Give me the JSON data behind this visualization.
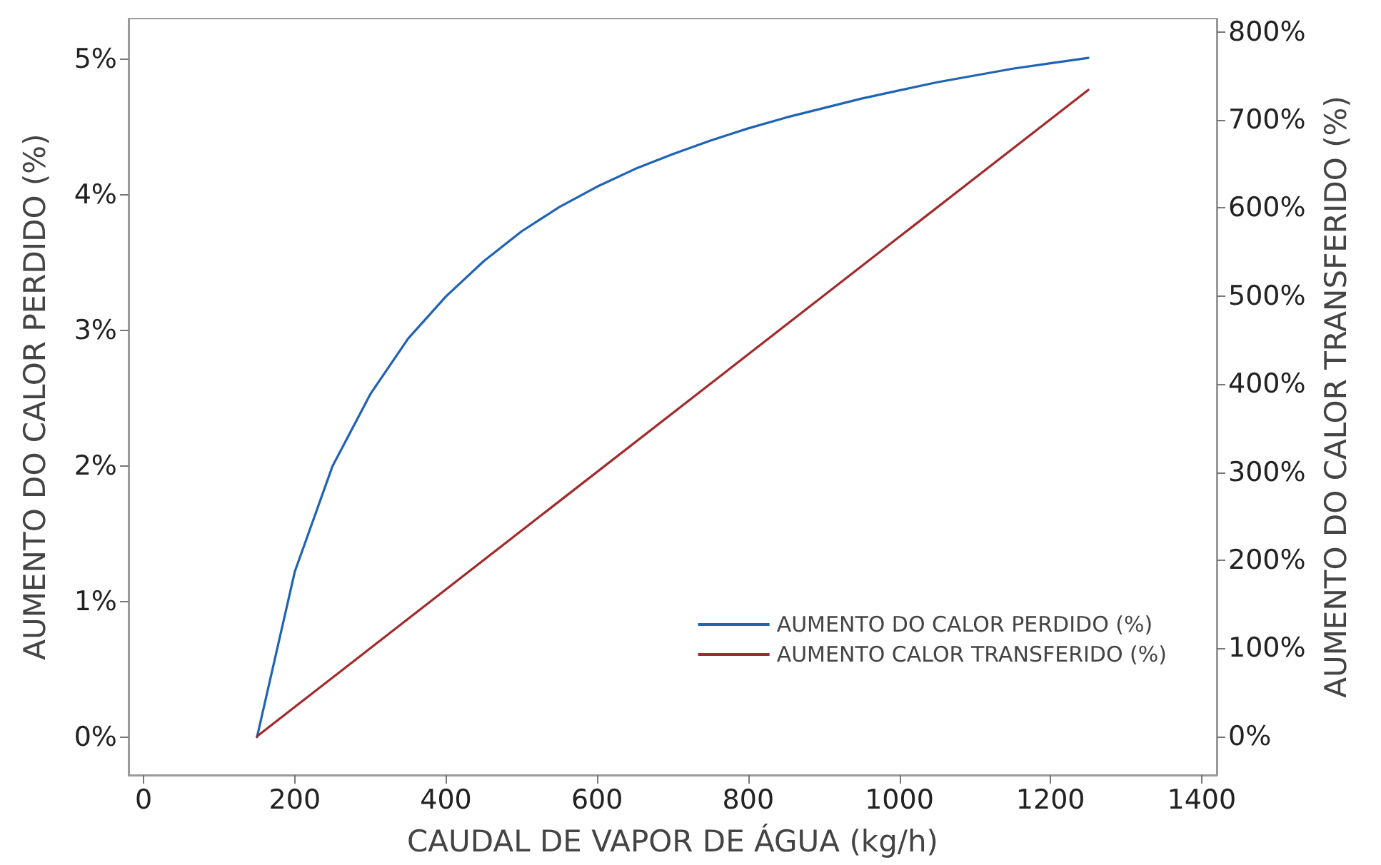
{
  "chart_data": {
    "type": "line",
    "xlabel": "CAUDAL DE VAPOR DE ÁGUA (kg/h)",
    "ylabel": "AUMENTO DO CALOR PERDIDO (%)",
    "y2label": "AUMENTO DO CALOR TRANSFERIDO (%)",
    "xlim": [
      -20,
      1420
    ],
    "xticks": [
      0,
      200,
      400,
      600,
      800,
      1000,
      1200,
      1400
    ],
    "ylim": [
      -0.28,
      5.3
    ],
    "yticks": [
      {
        "value": 0,
        "label": "0%"
      },
      {
        "value": 1,
        "label": "1%"
      },
      {
        "value": 2,
        "label": "2%"
      },
      {
        "value": 3,
        "label": "3%"
      },
      {
        "value": 4,
        "label": "4%"
      },
      {
        "value": 5,
        "label": "5%"
      }
    ],
    "y2lim": [
      -44,
      815
    ],
    "y2ticks": [
      {
        "value": 0,
        "label": "0%"
      },
      {
        "value": 100,
        "label": "100%"
      },
      {
        "value": 200,
        "label": "200%"
      },
      {
        "value": 300,
        "label": "300%"
      },
      {
        "value": 400,
        "label": "400%"
      },
      {
        "value": 500,
        "label": "500%"
      },
      {
        "value": 600,
        "label": "600%"
      },
      {
        "value": 700,
        "label": "700%"
      },
      {
        "value": 800,
        "label": "800%"
      }
    ],
    "grid": false,
    "legend": "bottom right",
    "marker": "none",
    "line_style": "solid",
    "series": [
      {
        "name": "AUMENTO DO CALOR PERDIDO (%)",
        "color": "#1f63b5",
        "x": [
          150,
          200,
          250,
          300,
          350,
          400,
          450,
          500,
          550,
          600,
          650,
          700,
          750,
          800,
          850,
          900,
          950,
          1000,
          1050,
          1100,
          1150,
          1200,
          1250
        ],
        "values": [
          0,
          1.22,
          2.0,
          2.53,
          2.94,
          3.25,
          3.51,
          3.73,
          3.91,
          4.06,
          4.19,
          4.3,
          4.4,
          4.49,
          4.57,
          4.64,
          4.71,
          4.77,
          4.83,
          4.88,
          4.93,
          4.97,
          5.01
        ]
      },
      {
        "name": "AUMENTO CALOR TRANSFERIDO (%)",
        "color": "#a32a2a",
        "axis": "y2",
        "x": [
          150,
          1250
        ],
        "values": [
          0,
          734
        ]
      }
    ]
  }
}
